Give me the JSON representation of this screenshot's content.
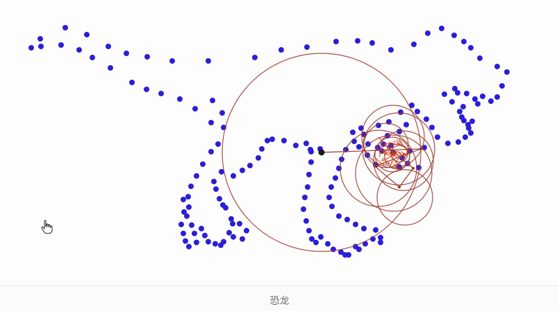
{
  "caption": "恐龙",
  "colors": {
    "point": "#2b1fd6",
    "circle": "#9b3a2e",
    "center": "#1a1a1a",
    "trace": "#d23a12"
  },
  "icons": {
    "cursor": "hand-pointer-icon"
  }
}
